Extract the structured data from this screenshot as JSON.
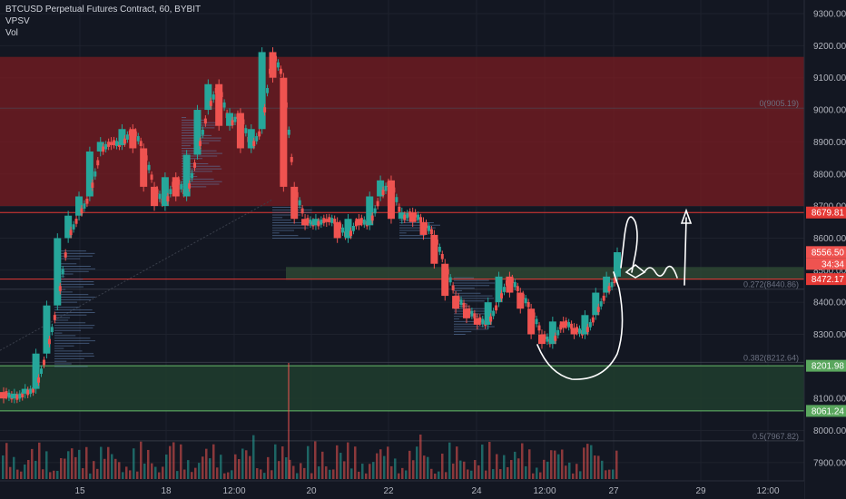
{
  "legend": {
    "title": "BTCUSD Perpetual Futures Contract, 60, BYBIT",
    "ind1": "VPSV",
    "ind2": "Vol"
  },
  "colors": {
    "background": "#131722",
    "up": "#26a69a",
    "down": "#ef5350",
    "grid": "#1e222d",
    "axis_text": "#b2b5be",
    "resistance_zone": "#7a1c22",
    "support_zone": "#1f3b2e",
    "red_line": "#e53935",
    "green_line": "#66bb6a"
  },
  "chart_data": {
    "type": "candlestick",
    "title": "BTCUSD Perpetual Futures Contract, 60, BYBIT",
    "interval": "60",
    "exchange": "BYBIT",
    "y_ticks": [
      7900,
      8000,
      8100,
      8200,
      8300,
      8400,
      8500,
      8600,
      8700,
      8800,
      8900,
      9000,
      9100,
      9200,
      9300
    ],
    "y_tick_labels": [
      "7900.00",
      "8000.00",
      "8100.00",
      "8200.00",
      "8300.00",
      "8400.00",
      "8500.00",
      "8600.00",
      "8700.00",
      "8800.00",
      "8900.00",
      "9000.00",
      "9100.00",
      "9200.00",
      "9300.00"
    ],
    "ylim": [
      7845,
      9330
    ],
    "x_ticks": [
      "15",
      "18",
      "12:00",
      "20",
      "22",
      "24",
      "12:00",
      "27",
      "29",
      "12:00"
    ],
    "series_shape": [
      [
        8100,
        8120
      ],
      [
        8115,
        8090
      ],
      [
        8130,
        8060
      ],
      [
        8240,
        8070
      ],
      [
        8390,
        8280
      ],
      [
        8600,
        8420
      ],
      [
        8670,
        8490
      ],
      [
        8730,
        8520
      ],
      [
        8870,
        8650
      ],
      [
        8900,
        8700
      ],
      [
        8890,
        8620
      ],
      [
        8940,
        8720
      ],
      [
        8880,
        8680
      ],
      [
        8760,
        8600
      ],
      [
        8700,
        8650
      ],
      [
        8790,
        8620
      ],
      [
        8730,
        8680
      ],
      [
        8860,
        8700
      ],
      [
        9000,
        8820
      ],
      [
        9080,
        8870
      ],
      [
        8950,
        8850
      ],
      [
        8990,
        8860
      ],
      [
        8880,
        8840
      ],
      [
        8940,
        8900
      ],
      [
        9180,
        8890
      ],
      [
        9100,
        9000
      ],
      [
        8760,
        8940
      ],
      [
        8660,
        8700
      ],
      [
        8640,
        8650
      ],
      [
        8660,
        8630
      ],
      [
        8650,
        8640
      ],
      [
        8600,
        8620
      ],
      [
        8660,
        8590
      ],
      [
        8640,
        8650
      ],
      [
        8730,
        8520
      ],
      [
        8780,
        8650
      ],
      [
        8660,
        8700
      ],
      [
        8680,
        8660
      ],
      [
        8650,
        8650
      ],
      [
        8610,
        8560
      ],
      [
        8520,
        8580
      ],
      [
        8420,
        8500
      ],
      [
        8380,
        8400
      ],
      [
        8350,
        8380
      ],
      [
        8330,
        8360
      ],
      [
        8400,
        8320
      ],
      [
        8480,
        8400
      ],
      [
        8430,
        8460
      ],
      [
        8380,
        8430
      ],
      [
        8300,
        8380
      ],
      [
        8270,
        8300
      ],
      [
        8340,
        8280
      ],
      [
        8320,
        8320
      ],
      [
        8300,
        8310
      ],
      [
        8360,
        8290
      ],
      [
        8430,
        8350
      ],
      [
        8480,
        8420
      ],
      [
        8556,
        8470
      ]
    ],
    "levels": [
      {
        "label": "8679.81",
        "value": 8679.81,
        "kind": "red_line"
      },
      {
        "label": "8556.50",
        "value": 8556.5,
        "kind": "current_price"
      },
      {
        "label": "34:34",
        "kind": "countdown"
      },
      {
        "label": "8472.17",
        "value": 8472.17,
        "kind": "red_line"
      },
      {
        "label": "8201.98",
        "value": 8201.98,
        "kind": "green_line"
      },
      {
        "label": "8061.24",
        "value": 8061.24,
        "kind": "green_line"
      }
    ],
    "fib": [
      {
        "label": "0(9005.19)",
        "value": 9005.19
      },
      {
        "label": "0.272(8440.86)",
        "value": 8440.86
      },
      {
        "label": "0.382(8212.64)",
        "value": 8212.64
      },
      {
        "label": "0.5(7967.82)",
        "value": 7967.82
      }
    ],
    "zones": [
      {
        "kind": "resistance",
        "from": 8700,
        "to": 9165
      },
      {
        "kind": "support",
        "from": 8061.24,
        "to": 8201.98
      },
      {
        "kind": "support_small",
        "from": 8470,
        "to": 8510
      }
    ],
    "grid": true
  }
}
